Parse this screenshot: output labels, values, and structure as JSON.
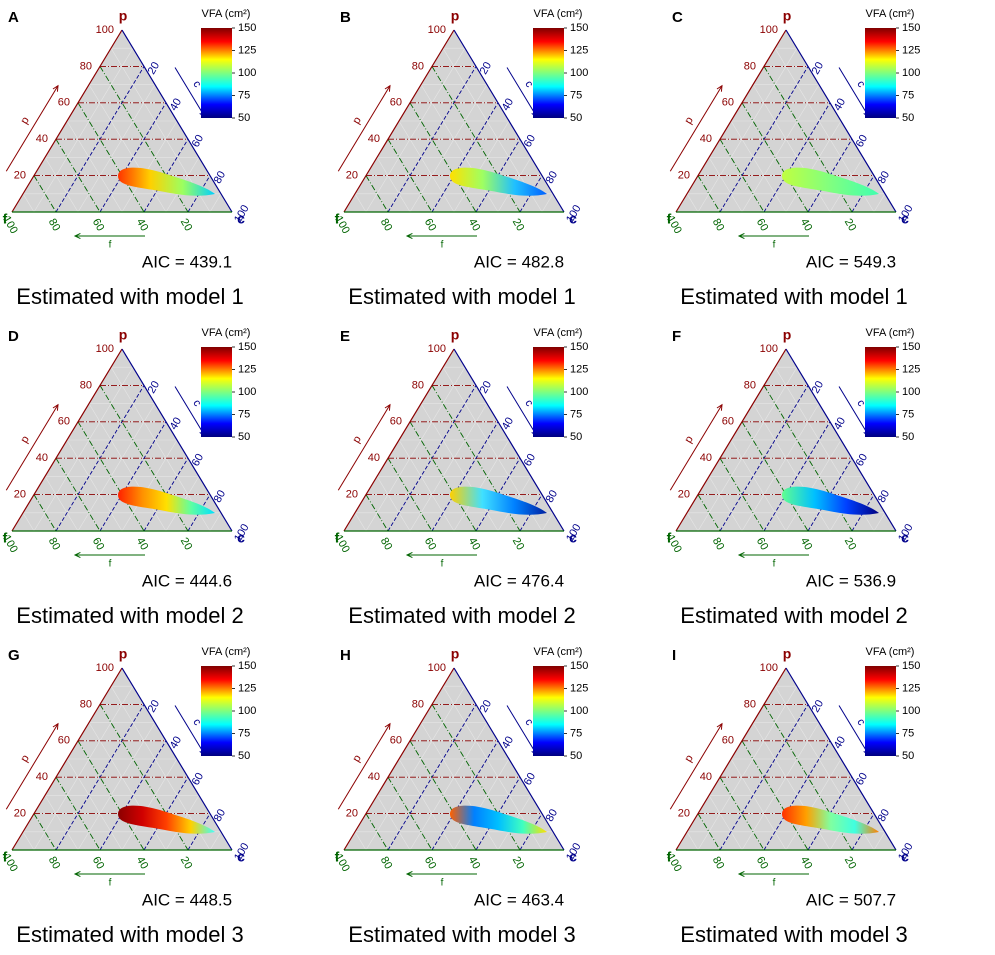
{
  "chart_data": [
    {
      "type": "ternary",
      "panel": "A",
      "vertex_labels": {
        "p": "p",
        "c": "c",
        "f": "f"
      },
      "arrow_labels": {
        "p": "p",
        "c": "c",
        "f": "f"
      },
      "ticks": [
        20,
        40,
        60,
        80,
        100
      ],
      "colorbar": {
        "title": "VFA (cm²)",
        "lim": [
          50,
          150
        ],
        "ticks": [
          50,
          75,
          100,
          125,
          150
        ]
      },
      "blob_colors": [
        "#ff3300",
        "#ffd000",
        "#9cff60",
        "#00d0ff"
      ],
      "aic": "AIC = 439.1",
      "caption": "Estimated with model 1"
    },
    {
      "type": "ternary",
      "panel": "B",
      "vertex_labels": {
        "p": "p",
        "c": "c",
        "f": "f"
      },
      "arrow_labels": {
        "p": "p",
        "c": "c",
        "f": "f"
      },
      "ticks": [
        20,
        40,
        60,
        80,
        100
      ],
      "colorbar": {
        "title": "VFA (cm²)",
        "lim": [
          50,
          150
        ],
        "ticks": [
          50,
          75,
          100,
          125,
          150
        ]
      },
      "blob_colors": [
        "#ffe000",
        "#a0ff60",
        "#20c0ff",
        "#0060ff"
      ],
      "aic": "AIC = 482.8",
      "caption": "Estimated with model 1"
    },
    {
      "type": "ternary",
      "panel": "C",
      "vertex_labels": {
        "p": "p",
        "c": "c",
        "f": "f"
      },
      "arrow_labels": {
        "p": "p",
        "c": "c",
        "f": "f"
      },
      "ticks": [
        20,
        40,
        60,
        80,
        100
      ],
      "colorbar": {
        "title": "VFA (cm²)",
        "lim": [
          50,
          150
        ],
        "ticks": [
          50,
          75,
          100,
          125,
          150
        ]
      },
      "blob_colors": [
        "#c0ff40",
        "#80ff80",
        "#40ffb0"
      ],
      "aic": "AIC = 549.3",
      "caption": "Estimated with model 1"
    },
    {
      "type": "ternary",
      "panel": "D",
      "vertex_labels": {
        "p": "p",
        "c": "c",
        "f": "f"
      },
      "arrow_labels": {
        "p": "p",
        "c": "c",
        "f": "f"
      },
      "ticks": [
        20,
        40,
        60,
        80,
        100
      ],
      "colorbar": {
        "title": "VFA (cm²)",
        "lim": [
          50,
          150
        ],
        "ticks": [
          50,
          75,
          100,
          125,
          150
        ]
      },
      "blob_colors": [
        "#ff2000",
        "#ff9000",
        "#ffe000",
        "#60ffa0",
        "#00e0ff"
      ],
      "aic": "AIC = 444.6",
      "caption": "Estimated with model 2"
    },
    {
      "type": "ternary",
      "panel": "E",
      "vertex_labels": {
        "p": "p",
        "c": "c",
        "f": "f"
      },
      "arrow_labels": {
        "p": "p",
        "c": "c",
        "f": "f"
      },
      "ticks": [
        20,
        40,
        60,
        80,
        100
      ],
      "colorbar": {
        "title": "VFA (cm²)",
        "lim": [
          50,
          150
        ],
        "ticks": [
          50,
          75,
          100,
          125,
          150
        ]
      },
      "blob_colors": [
        "#ffd000",
        "#40e0ff",
        "#0080ff",
        "#0020a0"
      ],
      "aic": "AIC = 476.4",
      "caption": "Estimated with model 2"
    },
    {
      "type": "ternary",
      "panel": "F",
      "vertex_labels": {
        "p": "p",
        "c": "c",
        "f": "f"
      },
      "arrow_labels": {
        "p": "p",
        "c": "c",
        "f": "f"
      },
      "ticks": [
        20,
        40,
        60,
        80,
        100
      ],
      "colorbar": {
        "title": "VFA (cm²)",
        "lim": [
          50,
          150
        ],
        "ticks": [
          50,
          75,
          100,
          125,
          150
        ]
      },
      "blob_colors": [
        "#60ff90",
        "#00c0ff",
        "#0040ff",
        "#000080"
      ],
      "aic": "AIC = 536.9",
      "caption": "Estimated with model 2"
    },
    {
      "type": "ternary",
      "panel": "G",
      "vertex_labels": {
        "p": "p",
        "c": "c",
        "f": "f"
      },
      "arrow_labels": {
        "p": "p",
        "c": "c",
        "f": "f"
      },
      "ticks": [
        20,
        40,
        60,
        80,
        100
      ],
      "colorbar": {
        "title": "VFA (cm²)",
        "lim": [
          50,
          150
        ],
        "ticks": [
          50,
          75,
          100,
          125,
          150
        ]
      },
      "blob_colors": [
        "#8b0000",
        "#d00000",
        "#ff4000",
        "#ffd000",
        "#40ffff"
      ],
      "aic": "AIC = 448.5",
      "caption": "Estimated with model 3"
    },
    {
      "type": "ternary",
      "panel": "H",
      "vertex_labels": {
        "p": "p",
        "c": "c",
        "f": "f"
      },
      "arrow_labels": {
        "p": "p",
        "c": "c",
        "f": "f"
      },
      "ticks": [
        20,
        40,
        60,
        80,
        100
      ],
      "colorbar": {
        "title": "VFA (cm²)",
        "lim": [
          50,
          150
        ],
        "ticks": [
          50,
          75,
          100,
          125,
          150
        ]
      },
      "blob_colors": [
        "#ff6000",
        "#0080ff",
        "#00c0ff",
        "#40ffc0",
        "#ffe000"
      ],
      "aic": "AIC = 463.4",
      "caption": "Estimated with model 3"
    },
    {
      "type": "ternary",
      "panel": "I",
      "vertex_labels": {
        "p": "p",
        "c": "c",
        "f": "f"
      },
      "arrow_labels": {
        "p": "p",
        "c": "c",
        "f": "f"
      },
      "ticks": [
        20,
        40,
        60,
        80,
        100
      ],
      "colorbar": {
        "title": "VFA (cm²)",
        "lim": [
          50,
          150
        ],
        "ticks": [
          50,
          75,
          100,
          125,
          150
        ]
      },
      "blob_colors": [
        "#ff3000",
        "#ffa000",
        "#80ffa0",
        "#40ffe0",
        "#ff8000"
      ],
      "aic": "AIC = 507.7",
      "caption": "Estimated with model 3"
    }
  ]
}
